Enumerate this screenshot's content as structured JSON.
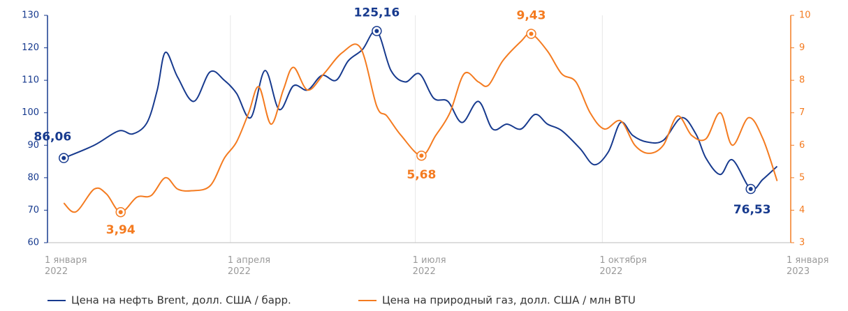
{
  "chart_data": {
    "type": "line",
    "xlim": [
      "2022-01-01",
      "2023-01-01"
    ],
    "xticks": [
      {
        "value": "2022-01-01",
        "label": "1 января 2022"
      },
      {
        "value": "2022-04-01",
        "label": "1 апреля 2022"
      },
      {
        "value": "2022-07-01",
        "label": "1 июля 2022"
      },
      {
        "value": "2022-10-01",
        "label": "1 октября 2022"
      },
      {
        "value": "2023-01-01",
        "label": "1 января 2023"
      }
    ],
    "ylim": [
      60,
      130
    ],
    "yticks": [
      60,
      70,
      80,
      90,
      100,
      110,
      120,
      130
    ],
    "y2lim": [
      3,
      10
    ],
    "y2ticks": [
      3,
      4,
      5,
      6,
      7,
      8,
      9,
      10
    ],
    "grid": true,
    "legend": "bottom",
    "series": [
      {
        "name": "Цена на нефть Brent, долл. США / барр.",
        "color": "#173a8e",
        "axis": "y",
        "x": [
          "2022-01-09",
          "2022-01-24",
          "2022-02-05",
          "2022-02-12",
          "2022-02-19",
          "2022-02-24",
          "2022-02-28",
          "2022-03-06",
          "2022-03-14",
          "2022-03-22",
          "2022-03-29",
          "2022-04-04",
          "2022-04-11",
          "2022-04-18",
          "2022-04-25",
          "2022-05-02",
          "2022-05-09",
          "2022-05-16",
          "2022-05-23",
          "2022-05-29",
          "2022-06-05",
          "2022-06-12",
          "2022-06-19",
          "2022-06-26",
          "2022-07-03",
          "2022-07-10",
          "2022-07-17",
          "2022-07-24",
          "2022-08-01",
          "2022-08-08",
          "2022-08-15",
          "2022-08-22",
          "2022-08-29",
          "2022-09-04",
          "2022-09-11",
          "2022-09-20",
          "2022-09-27",
          "2022-10-04",
          "2022-10-10",
          "2022-10-16",
          "2022-10-23",
          "2022-10-31",
          "2022-11-09",
          "2022-11-16",
          "2022-11-21",
          "2022-11-28",
          "2022-12-04",
          "2022-12-13",
          "2022-12-19",
          "2022-12-26"
        ],
        "values": [
          86.06,
          90,
          94.4,
          93.5,
          97,
          107,
          118.6,
          111,
          103.5,
          112.6,
          110,
          106,
          98.5,
          113,
          101,
          108.3,
          107,
          111.5,
          110,
          116,
          119.5,
          125.16,
          113,
          109.5,
          112,
          104.5,
          103.5,
          97,
          103.5,
          95,
          96.5,
          95,
          99.5,
          96.5,
          94.5,
          89,
          84,
          88,
          97,
          93,
          91,
          91.5,
          98.5,
          93.5,
          86,
          81,
          85.5,
          76.53,
          79.5,
          83.5
        ],
        "value_labels": [
          "86,06",
          null,
          null,
          null,
          null,
          null,
          null,
          null,
          null,
          null,
          null,
          null,
          null,
          null,
          null,
          null,
          null,
          null,
          null,
          null,
          null,
          "125,16",
          null,
          null,
          null,
          null,
          null,
          null,
          null,
          null,
          null,
          null,
          null,
          null,
          null,
          null,
          null,
          null,
          null,
          null,
          null,
          null,
          null,
          null,
          null,
          null,
          null,
          "76,53",
          null,
          null
        ]
      },
      {
        "name": "Цена на природный газ, долл. США / млн BTU",
        "color": "#f47b20",
        "axis": "y2",
        "x": [
          "2022-01-09",
          "2022-01-15",
          "2022-01-24",
          "2022-01-30",
          "2022-02-06",
          "2022-02-14",
          "2022-02-21",
          "2022-02-28",
          "2022-03-06",
          "2022-03-13",
          "2022-03-22",
          "2022-03-29",
          "2022-04-04",
          "2022-04-10",
          "2022-04-15",
          "2022-04-21",
          "2022-04-27",
          "2022-05-02",
          "2022-05-09",
          "2022-05-17",
          "2022-05-26",
          "2022-06-04",
          "2022-06-12",
          "2022-06-17",
          "2022-06-24",
          "2022-07-04",
          "2022-07-11",
          "2022-07-18",
          "2022-07-25",
          "2022-08-01",
          "2022-08-06",
          "2022-08-13",
          "2022-08-22",
          "2022-08-27",
          "2022-09-04",
          "2022-09-11",
          "2022-09-18",
          "2022-09-25",
          "2022-10-02",
          "2022-10-10",
          "2022-10-17",
          "2022-10-24",
          "2022-10-31",
          "2022-11-07",
          "2022-11-14",
          "2022-11-21",
          "2022-11-28",
          "2022-12-04",
          "2022-12-12",
          "2022-12-19",
          "2022-12-26"
        ],
        "values": [
          4.22,
          3.95,
          4.65,
          4.5,
          3.94,
          4.4,
          4.45,
          5.0,
          4.65,
          4.6,
          4.75,
          5.6,
          6.1,
          7.0,
          7.8,
          6.65,
          7.7,
          8.4,
          7.7,
          8.2,
          8.85,
          9.0,
          7.2,
          6.9,
          6.3,
          5.68,
          6.3,
          7.0,
          8.2,
          7.95,
          7.85,
          8.6,
          9.2,
          9.43,
          8.9,
          8.2,
          7.95,
          7.0,
          6.5,
          6.75,
          6.0,
          5.75,
          6.0,
          6.9,
          6.3,
          6.2,
          7.0,
          6.0,
          6.85,
          6.2,
          4.9
        ],
        "value_labels": [
          null,
          null,
          null,
          null,
          "3,94",
          null,
          null,
          null,
          null,
          null,
          null,
          null,
          null,
          null,
          null,
          null,
          null,
          null,
          null,
          null,
          null,
          null,
          null,
          null,
          null,
          "5,68",
          null,
          null,
          null,
          null,
          null,
          null,
          null,
          "9,43",
          null,
          null,
          null,
          null,
          null,
          null,
          null,
          null,
          null,
          null,
          null,
          null,
          null,
          null,
          null,
          null,
          null
        ]
      }
    ]
  }
}
